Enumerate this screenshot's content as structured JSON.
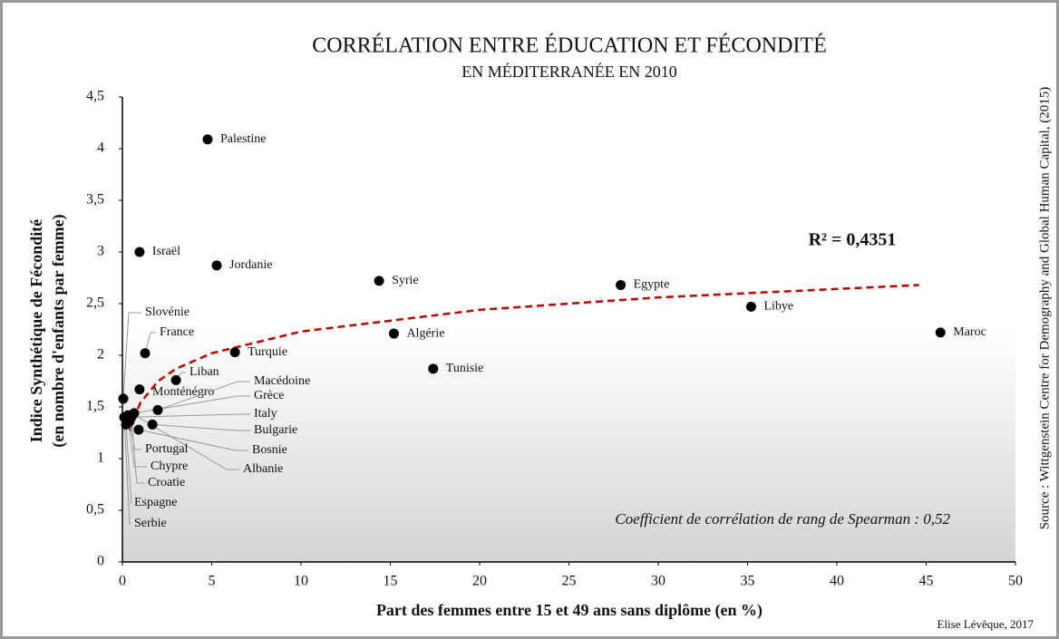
{
  "chart_data": {
    "type": "scatter",
    "title": "CORRÉLATION  ENTRE ÉDUCATION ET FÉCONDITÉ",
    "subtitle": "EN MÉDITERRANÉE EN 2010",
    "x_label": "Part des femmes entre 15 et 49 ans sans diplôme (en %)",
    "y_label": [
      "Indice Synthétique de Fécondité",
      "(en nombre d'enfants par femme)"
    ],
    "labels": [
      "Palestine",
      "Israël",
      "Jordanie",
      "Syrie",
      "Egypte",
      "Libye",
      "Maroc",
      "Algérie",
      "Tunisie",
      "Turquie",
      "France",
      "Slovénie",
      "Liban",
      "Monténégro",
      "Macédoine",
      "Grèce",
      "Italy",
      "Bulgarie",
      "Bosnie",
      "Albanie",
      "Portugal",
      "Chypre",
      "Croatie",
      "Espagne",
      "Serbie"
    ],
    "x": [
      4.77,
      0.96,
      5.28,
      14.37,
      27.9,
      35.2,
      45.8,
      15.2,
      17.4,
      6.3,
      1.27,
      0.05,
      3.0,
      0.96,
      1.98,
      0.66,
      0.25,
      1.68,
      0.91,
      0.6,
      0.4,
      0.3,
      0.5,
      0.2,
      0.1
    ],
    "values": [
      4.09,
      3.0,
      2.87,
      2.72,
      2.68,
      2.47,
      2.22,
      2.21,
      1.87,
      2.03,
      2.02,
      1.58,
      1.76,
      1.67,
      1.47,
      1.44,
      1.4,
      1.33,
      1.28,
      1.43,
      1.36,
      1.42,
      1.4,
      1.33,
      1.4
    ],
    "color": "#000000",
    "trendline": {
      "color": "#c00000",
      "x": [
        0.4,
        1,
        2,
        3,
        5,
        10,
        20,
        30,
        44.6
      ],
      "values": [
        1.27,
        1.54,
        1.75,
        1.87,
        2.02,
        2.23,
        2.44,
        2.56,
        2.68
      ]
    },
    "annotations": [
      "R² = 0,4351",
      "Coefficient de corrélation de rang de Spearman : 0,52"
    ],
    "source": "Source : Wittgenstein Centre for Demography and Global Human Capital, (2015)",
    "credit": "Elise Lévêque, 2017",
    "xlim": [
      0,
      50
    ],
    "xticks": [
      0,
      5,
      10,
      15,
      20,
      25,
      30,
      35,
      40,
      45,
      50
    ],
    "ylim": [
      0,
      4.5
    ],
    "yticks": [
      0,
      {
        "value": 0.5,
        "label": "0,5"
      },
      1,
      {
        "value": 1.5,
        "label": "1,5"
      },
      2,
      {
        "value": 2.5,
        "label": "2,5"
      },
      3,
      {
        "value": 3.5,
        "label": "3,5"
      },
      4,
      {
        "value": 4.5,
        "label": "4,5"
      }
    ],
    "grid": false
  }
}
